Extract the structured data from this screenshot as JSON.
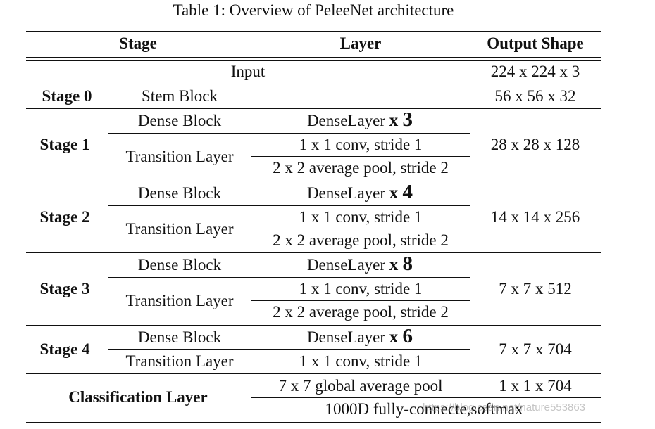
{
  "caption": "Table 1: Overview of PeleeNet architecture",
  "header": {
    "stage": "Stage",
    "layer": "Layer",
    "output": "Output Shape"
  },
  "input": {
    "label": "Input",
    "output": "224 x 224 x 3"
  },
  "stage0": {
    "label": "Stage 0",
    "block": "Stem Block",
    "output": "56 x 56 x 32"
  },
  "stages": [
    {
      "label": "Stage 1",
      "dense_block": "Dense Block",
      "dense_layer": "DenseLayer",
      "mult_x": "x",
      "mult_n": "3",
      "transition": "Transition Layer",
      "conv": "1 x 1 conv, stride 1",
      "pool": "2 x 2 average pool, stride 2",
      "output": "28 x 28 x 128"
    },
    {
      "label": "Stage 2",
      "dense_block": "Dense Block",
      "dense_layer": "DenseLayer",
      "mult_x": "x",
      "mult_n": "4",
      "transition": "Transition Layer",
      "conv": "1 x 1 conv, stride 1",
      "pool": "2 x 2 average pool, stride 2",
      "output": "14 x 14 x 256"
    },
    {
      "label": "Stage 3",
      "dense_block": "Dense Block",
      "dense_layer": "DenseLayer",
      "mult_x": "x",
      "mult_n": "8",
      "transition": "Transition Layer",
      "conv": "1 x 1 conv, stride 1",
      "pool": "2 x 2 average pool, stride 2",
      "output": "7 x 7 x 512"
    }
  ],
  "stage4": {
    "label": "Stage 4",
    "dense_block": "Dense Block",
    "dense_layer": "DenseLayer",
    "mult_x": "x",
    "mult_n": "6",
    "transition": "Transition Layer",
    "conv": "1 x 1 conv, stride 1",
    "output": "7 x 7 x 704"
  },
  "classification": {
    "label": "Classification Layer",
    "pool": "7 x 7 global average pool",
    "fc": "1000D fully-connecte,softmax",
    "output": "1 x 1 x 704"
  },
  "watermark": "https://blog.csdn.net/nature553863"
}
